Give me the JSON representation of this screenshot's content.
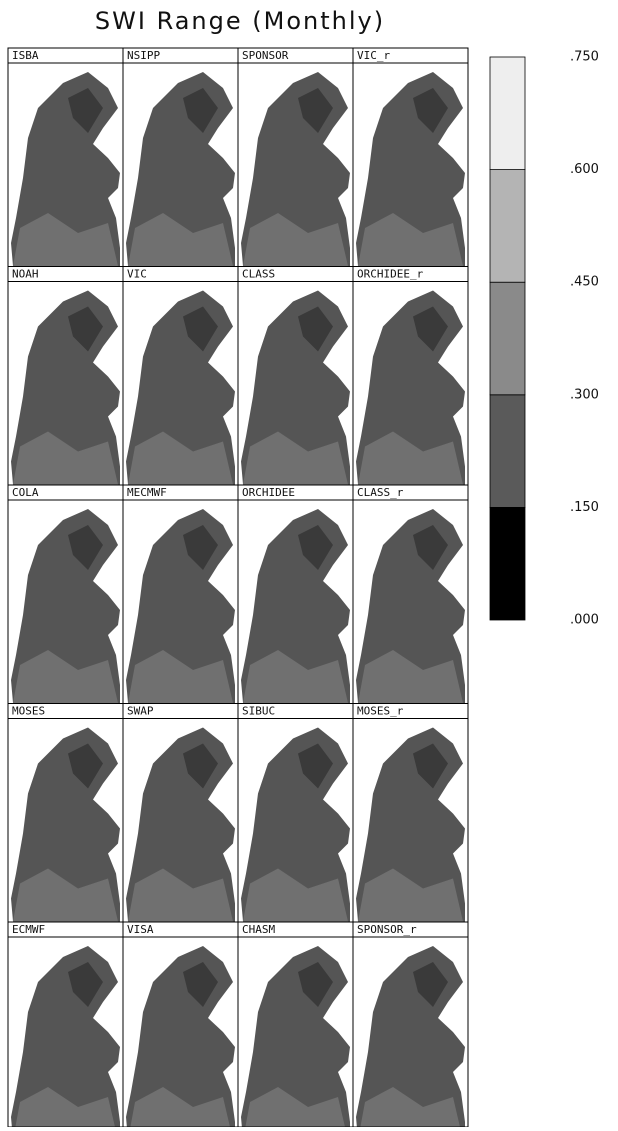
{
  "title": "SWI Range (Monthly)",
  "panels": [
    "ISBA",
    "NSIPP",
    "SPONSOR",
    "VIC_r",
    "NOAH",
    "VIC",
    "CLASS",
    "ORCHIDEE_r",
    "COLA",
    "MECMWF",
    "ORCHIDEE",
    "CLASS_r",
    "MOSES",
    "SWAP",
    "SIBUC",
    "MOSES_r",
    "ECMWF",
    "VISA",
    "CHASM",
    "SPONSOR_r"
  ],
  "colorbar": {
    "ticks": [
      {
        "value": 0.75,
        "label": ".750"
      },
      {
        "value": 0.6,
        "label": ".600"
      },
      {
        "value": 0.45,
        "label": ".450"
      },
      {
        "value": 0.3,
        "label": ".300"
      },
      {
        "value": 0.15,
        "label": ".150"
      },
      {
        "value": 0,
        "label": ".000"
      }
    ],
    "colors": [
      "#000000",
      "#5a5a5a",
      "#8a8a8a",
      "#b4b4b4",
      "#eeeeee"
    ]
  }
}
